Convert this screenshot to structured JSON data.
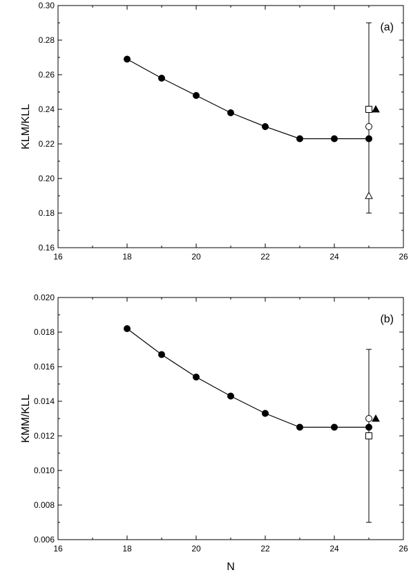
{
  "chart_data": [
    {
      "type": "line",
      "panel_label": "(a)",
      "xlabel": "",
      "ylabel": "KLM/KLL",
      "xlim": [
        16,
        26
      ],
      "ylim": [
        0.16,
        0.3
      ],
      "xticks": [
        16,
        18,
        20,
        22,
        24,
        26
      ],
      "xtick_labels": [
        "16",
        "18",
        "20",
        "22",
        "24",
        "26"
      ],
      "yticks": [
        0.16,
        0.18,
        0.2,
        0.22,
        0.24,
        0.26,
        0.28,
        0.3
      ],
      "ytick_labels": [
        "0.16",
        "0.18",
        "0.20",
        "0.22",
        "0.24",
        "0.26",
        "0.28",
        "0.30"
      ],
      "grid": false,
      "series": [
        {
          "marker": "filled-circle",
          "line": true,
          "x": [
            18,
            19,
            20,
            21,
            22,
            23,
            24,
            25
          ],
          "y": [
            0.269,
            0.258,
            0.248,
            0.238,
            0.23,
            0.223,
            0.223,
            0.223
          ]
        }
      ],
      "error_bar": {
        "x": 25,
        "low": 0.18,
        "high": 0.29
      },
      "comparison_points": [
        {
          "marker": "open-square",
          "x": 25,
          "y": 0.24
        },
        {
          "marker": "filled-triangle",
          "x": 25.2,
          "y": 0.24
        },
        {
          "marker": "open-circle",
          "x": 25,
          "y": 0.23
        },
        {
          "marker": "open-triangle",
          "x": 25,
          "y": 0.19
        }
      ]
    },
    {
      "type": "line",
      "panel_label": "(b)",
      "xlabel": "N",
      "ylabel": "KMM/KLL",
      "xlim": [
        16,
        26
      ],
      "ylim": [
        0.006,
        0.02
      ],
      "xticks": [
        16,
        18,
        20,
        22,
        24,
        26
      ],
      "xtick_labels": [
        "16",
        "18",
        "20",
        "22",
        "24",
        "26"
      ],
      "yticks": [
        0.006,
        0.008,
        0.01,
        0.012,
        0.014,
        0.016,
        0.018,
        0.02
      ],
      "ytick_labels": [
        "0.006",
        "0.008",
        "0.010",
        "0.012",
        "0.014",
        "0.016",
        "0.018",
        "0.020"
      ],
      "grid": false,
      "series": [
        {
          "marker": "filled-circle",
          "line": true,
          "x": [
            18,
            19,
            20,
            21,
            22,
            23,
            24,
            25
          ],
          "y": [
            0.0182,
            0.0167,
            0.0154,
            0.0143,
            0.0133,
            0.0125,
            0.0125,
            0.0125
          ]
        }
      ],
      "error_bar": {
        "x": 25,
        "low": 0.007,
        "high": 0.017
      },
      "comparison_points": [
        {
          "marker": "open-circle",
          "x": 25,
          "y": 0.013
        },
        {
          "marker": "filled-triangle",
          "x": 25.2,
          "y": 0.013
        },
        {
          "marker": "open-square",
          "x": 25,
          "y": 0.012
        }
      ]
    }
  ]
}
